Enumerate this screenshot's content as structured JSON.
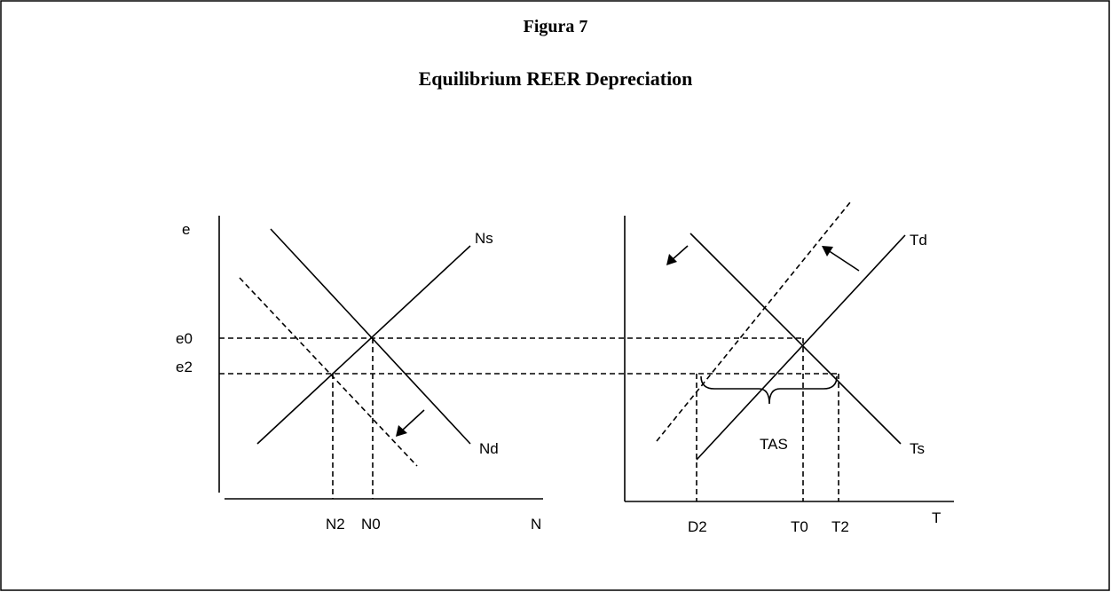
{
  "header": {
    "title": "Figura 7",
    "subtitle": "Equilibrium REER Depreciation"
  },
  "left_panel": {
    "y_axis_label": "e",
    "level_labels": [
      "e0",
      "e2"
    ],
    "curve_labels": [
      "Ns",
      "Nd"
    ],
    "x_labels": [
      "N2",
      "N0"
    ],
    "x_axis_label": "N"
  },
  "right_panel": {
    "curve_labels": [
      "Td",
      "Ts"
    ],
    "brace_label": "TAS",
    "x_labels": [
      "D2",
      "T0",
      "T2"
    ],
    "x_axis_label": "T"
  }
}
